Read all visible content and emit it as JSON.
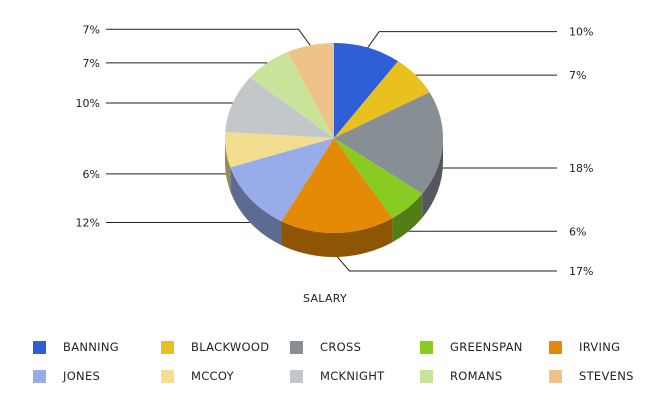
{
  "chart_data": {
    "type": "pie",
    "title": "",
    "xlabel": "SALARY",
    "categories": [
      "BANNING",
      "BLACKWOOD",
      "CROSS",
      "GREENSPAN",
      "IRVING",
      "JONES",
      "MCCOY",
      "MCKNIGHT",
      "ROMANS",
      "STEVENS"
    ],
    "values": [
      10,
      7,
      18,
      6,
      17,
      12,
      6,
      10,
      7,
      7
    ],
    "labels": [
      "10%",
      "7%",
      "18%",
      "6%",
      "17%",
      "12%",
      "6%",
      "10%",
      "7%",
      "7%"
    ],
    "colors": [
      "#2f5fd6",
      "#e8c11f",
      "#878e94",
      "#88cc22",
      "#e58a06",
      "#97ace8",
      "#f2de8e",
      "#c4c7ca",
      "#c9e49a",
      "#efc387"
    ],
    "legend": "bottom",
    "three_d": true
  }
}
